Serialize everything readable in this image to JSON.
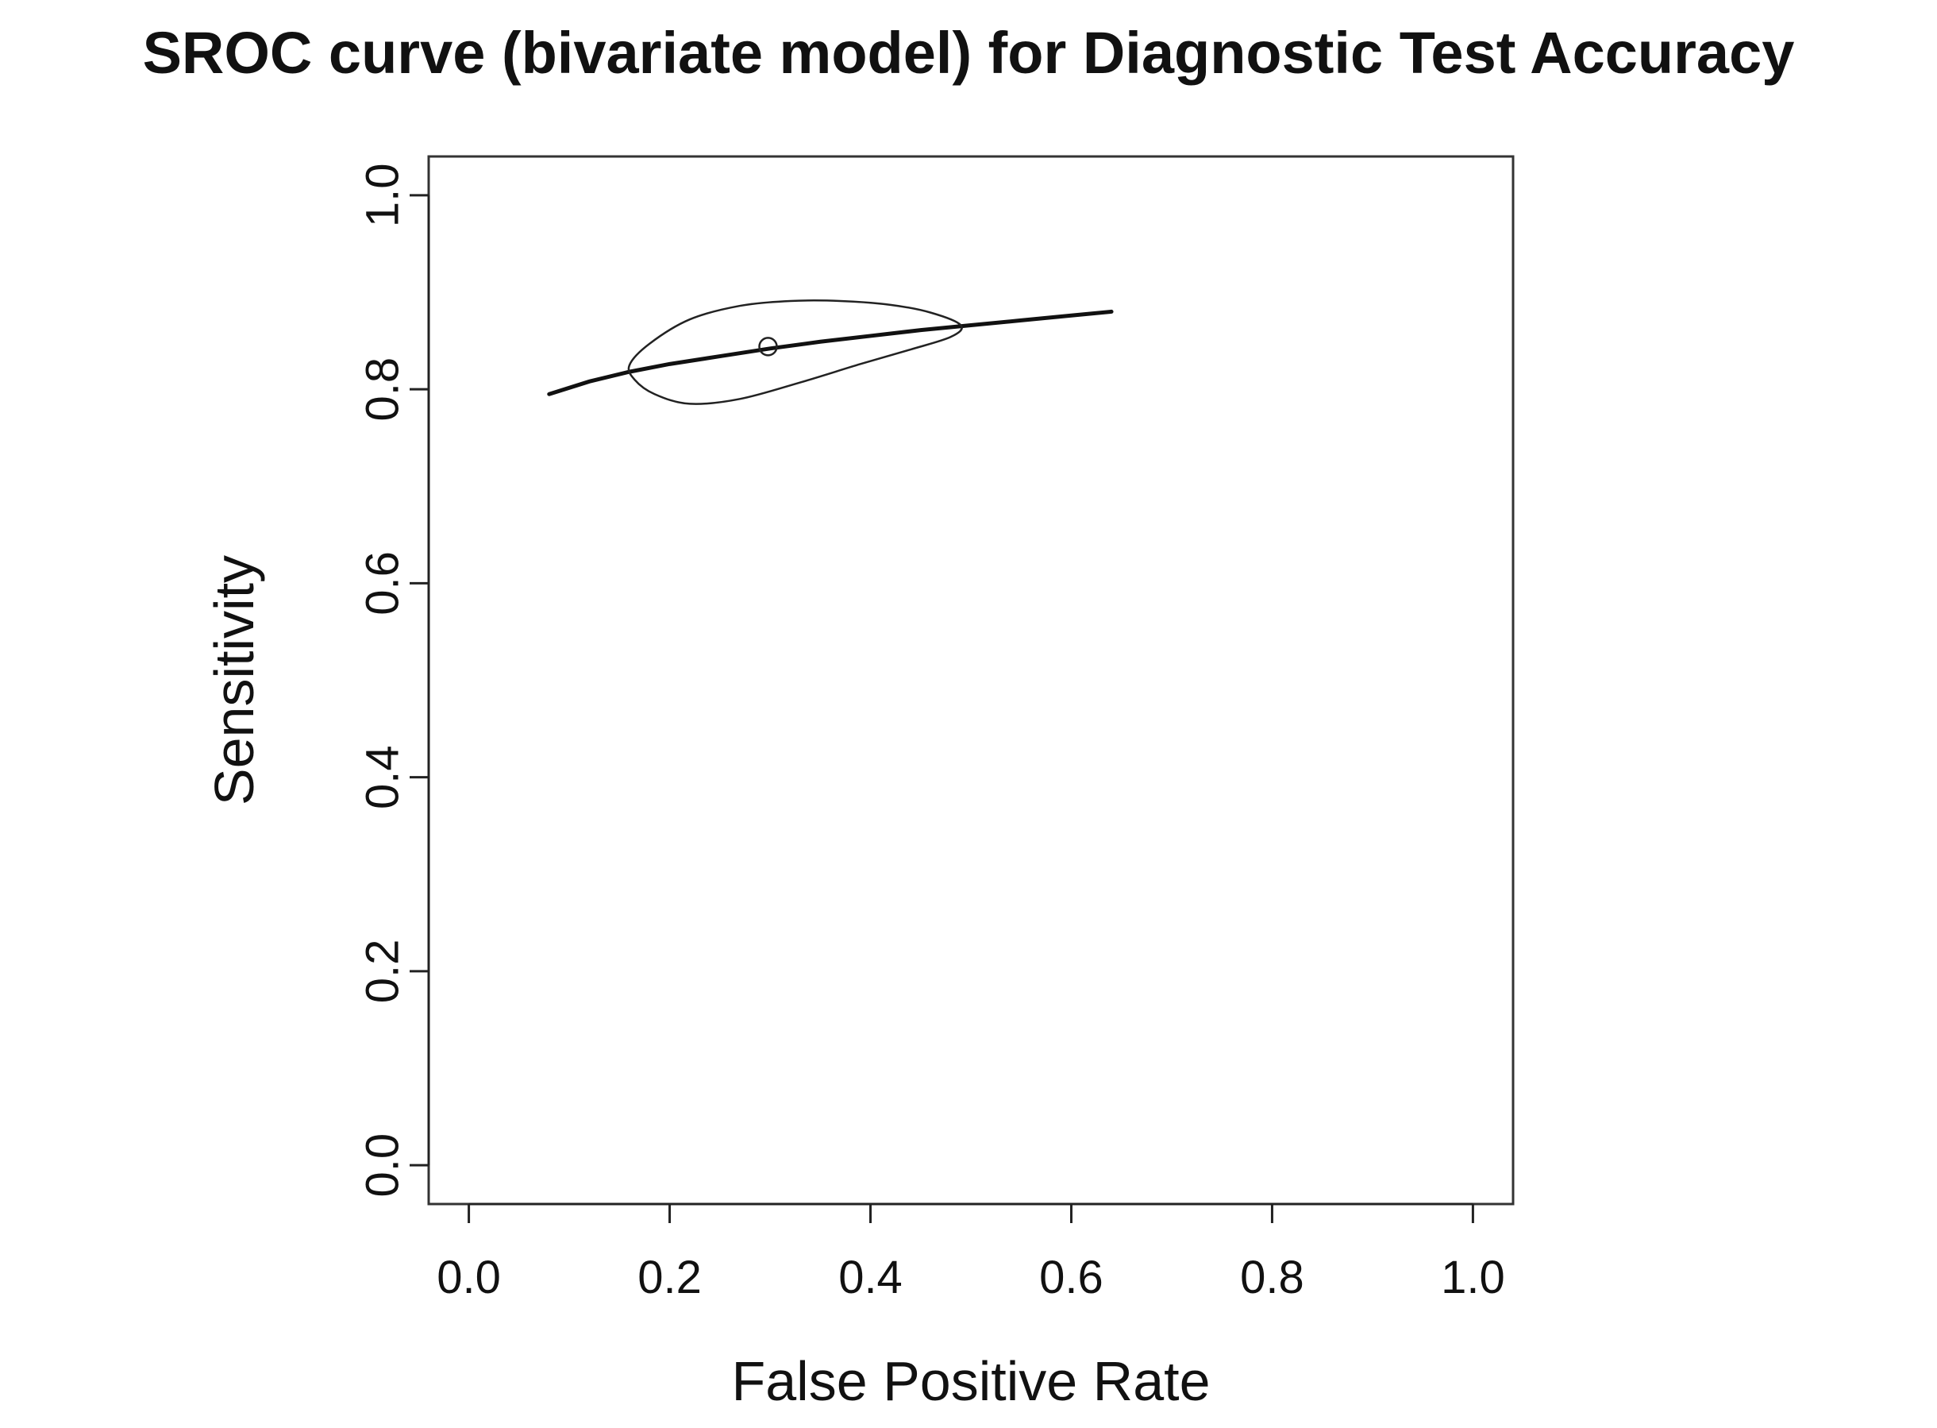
{
  "chart_data": {
    "type": "line",
    "title": "SROC curve (bivariate model) for Diagnostic Test Accuracy",
    "xlabel": "False Positive Rate",
    "ylabel": "Sensitivity",
    "xlim": [
      -0.04,
      1.04
    ],
    "ylim": [
      -0.04,
      1.04
    ],
    "x_ticks": [
      0.0,
      0.2,
      0.4,
      0.6,
      0.8,
      1.0
    ],
    "x_tick_labels": [
      "0.0",
      "0.2",
      "0.4",
      "0.6",
      "0.8",
      "1.0"
    ],
    "y_ticks": [
      0.0,
      0.2,
      0.4,
      0.6,
      0.8,
      1.0
    ],
    "y_tick_labels": [
      "0.0",
      "0.2",
      "0.4",
      "0.6",
      "0.8",
      "1.0"
    ],
    "grid": false,
    "legend": "none",
    "series": [
      {
        "kind": "sroc-curve",
        "x": [
          0.08,
          0.12,
          0.16,
          0.2,
          0.25,
          0.3,
          0.35,
          0.4,
          0.45,
          0.5,
          0.55,
          0.6,
          0.64
        ],
        "y": [
          0.795,
          0.808,
          0.818,
          0.826,
          0.834,
          0.842,
          0.849,
          0.855,
          0.861,
          0.866,
          0.871,
          0.876,
          0.88
        ]
      },
      {
        "kind": "confidence-region",
        "x": [
          0.16,
          0.18,
          0.22,
          0.27,
          0.32,
          0.37,
          0.42,
          0.46,
          0.49,
          0.48,
          0.44,
          0.39,
          0.33,
          0.27,
          0.22,
          0.185,
          0.165,
          0.16
        ],
        "y": [
          0.825,
          0.847,
          0.872,
          0.886,
          0.891,
          0.891,
          0.887,
          0.879,
          0.866,
          0.854,
          0.841,
          0.826,
          0.807,
          0.79,
          0.785,
          0.795,
          0.81,
          0.825
        ]
      },
      {
        "kind": "summary-point",
        "x": [
          0.298
        ],
        "y": [
          0.844
        ]
      }
    ]
  }
}
